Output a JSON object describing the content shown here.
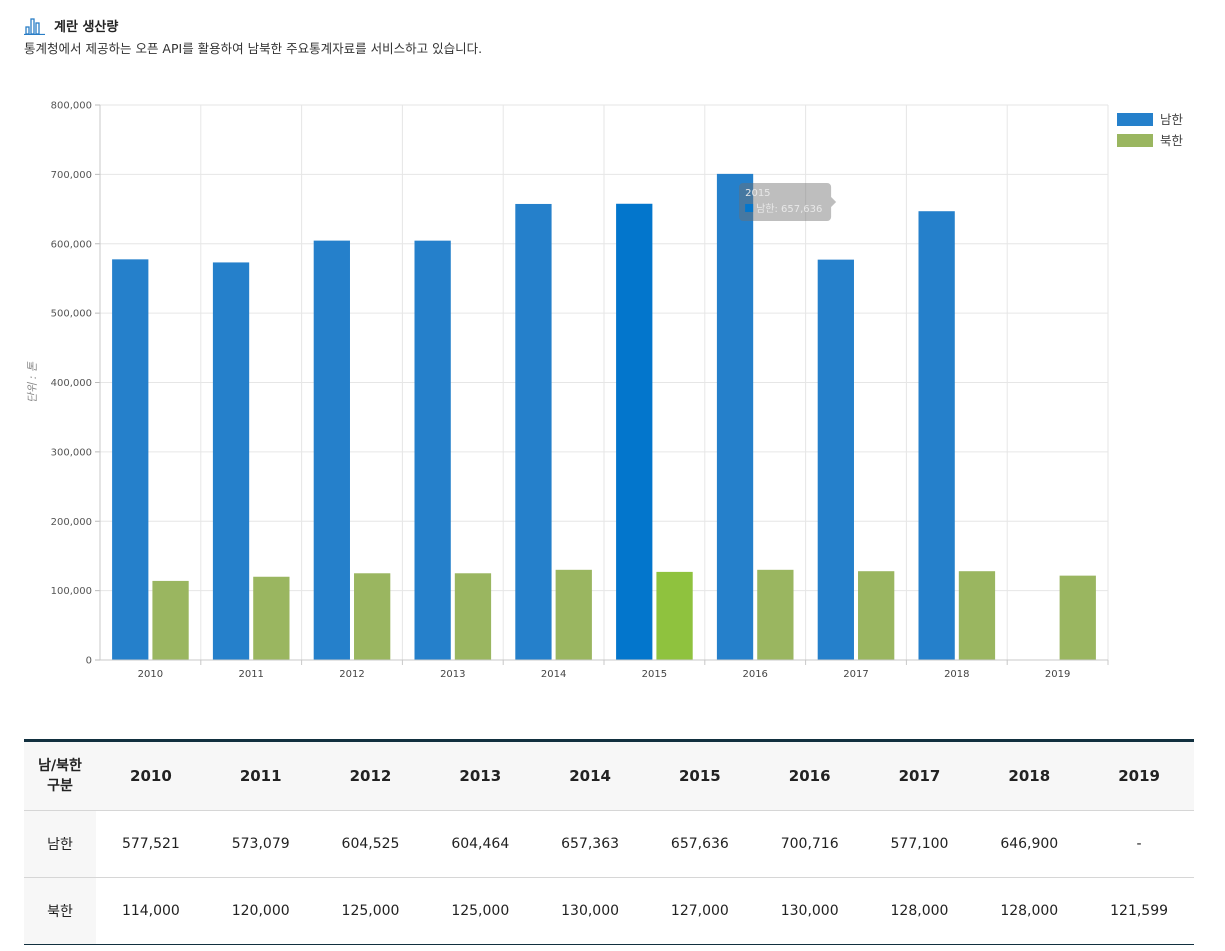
{
  "header": {
    "title": "계란 생산량",
    "subtitle": "통계청에서 제공하는 오픈 API를 활용하여 남북한 주요통계자료를 서비스하고 있습니다."
  },
  "colors": {
    "south": "#2580cb",
    "north": "#9ab660",
    "south_highlight": "#0376cc",
    "north_highlight": "#8fc23e"
  },
  "chart_data": {
    "type": "bar",
    "categories": [
      "2010",
      "2011",
      "2012",
      "2013",
      "2014",
      "2015",
      "2016",
      "2017",
      "2018",
      "2019"
    ],
    "series": [
      {
        "name": "남한",
        "values": [
          577521,
          573079,
          604525,
          604464,
          657363,
          657636,
          700716,
          577100,
          646900,
          null
        ]
      },
      {
        "name": "북한",
        "values": [
          114000,
          120000,
          125000,
          125000,
          130000,
          127000,
          130000,
          128000,
          128000,
          121599
        ]
      }
    ],
    "ylabel": "단위 : 톤",
    "ylim": [
      0,
      800000
    ],
    "yticks": [
      "0",
      "100,000",
      "200,000",
      "300,000",
      "400,000",
      "500,000",
      "600,000",
      "700,000",
      "800,000"
    ],
    "grid": true,
    "legend": "top-right",
    "highlighted_category": "2015",
    "tooltip": {
      "title": "2015",
      "text": "남한: 657,636"
    }
  },
  "table": {
    "corner": [
      "남/북한",
      "구분"
    ],
    "columns": [
      "2010",
      "2011",
      "2012",
      "2013",
      "2014",
      "2015",
      "2016",
      "2017",
      "2018",
      "2019"
    ],
    "rows": [
      {
        "label": "남한",
        "values": [
          "577,521",
          "573,079",
          "604,525",
          "604,464",
          "657,363",
          "657,636",
          "700,716",
          "577,100",
          "646,900",
          "-"
        ]
      },
      {
        "label": "북한",
        "values": [
          "114,000",
          "120,000",
          "125,000",
          "125,000",
          "130,000",
          "127,000",
          "130,000",
          "128,000",
          "128,000",
          "121,599"
        ]
      }
    ]
  }
}
